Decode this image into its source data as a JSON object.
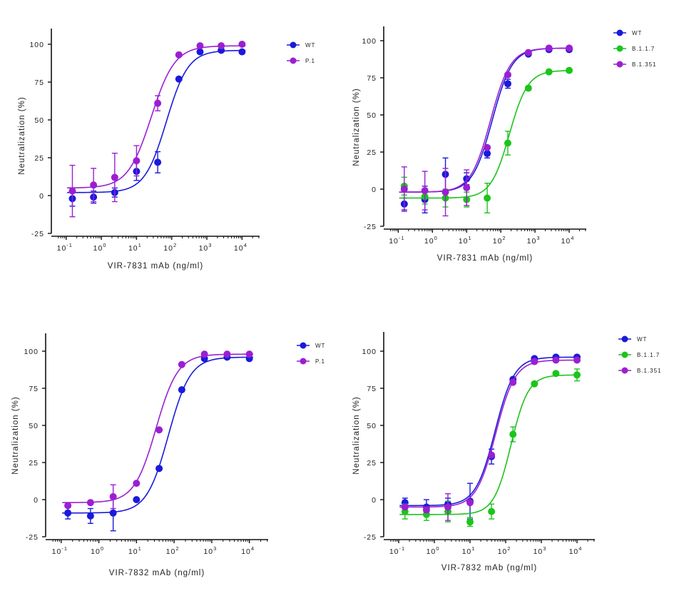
{
  "chart_data": [
    {
      "type": "line",
      "xscale": "log",
      "xlabel": "VIR-7831 mAb (ng/ml)",
      "ylabel": "Neutralization (%)",
      "xlim": [
        -1.3,
        4.5
      ],
      "ylim": [
        -25,
        110
      ],
      "yticks": [
        -25,
        0,
        25,
        50,
        75,
        100
      ],
      "xticks": [
        {
          "exp": -1,
          "base": "10",
          "sup": "-1"
        },
        {
          "exp": 0,
          "base": "10",
          "sup": "0"
        },
        {
          "exp": 1,
          "base": "10",
          "sup": "1"
        },
        {
          "exp": 2,
          "base": "10",
          "sup": "2"
        },
        {
          "exp": 3,
          "base": "10",
          "sup": "3"
        },
        {
          "exp": 4,
          "base": "10",
          "sup": "4"
        }
      ],
      "series": [
        {
          "name": "WT",
          "color": "#1a1adb",
          "x": [
            0.15,
            0.6,
            2.4,
            10,
            40,
            160,
            640,
            2560,
            10000
          ],
          "y": [
            -2,
            -1,
            2,
            16,
            22,
            77,
            95,
            96,
            95
          ],
          "err": [
            5,
            4,
            3,
            6,
            7,
            0,
            0,
            0,
            0
          ],
          "fit": {
            "bottom": 2,
            "top": 96,
            "log_ec50": 1.85,
            "hill": 1.4
          }
        },
        {
          "name": "P.1",
          "color": "#9b1fd1",
          "x": [
            0.15,
            0.6,
            2.4,
            10,
            40,
            160,
            640,
            2560,
            10000
          ],
          "y": [
            3,
            7,
            12,
            23,
            61,
            93,
            99,
            99,
            100
          ],
          "err": [
            17,
            11,
            16,
            10,
            5,
            0,
            0,
            0,
            0
          ],
          "fit": {
            "bottom": 5,
            "top": 99,
            "log_ec50": 1.42,
            "hill": 1.3
          }
        }
      ]
    },
    {
      "type": "line",
      "xscale": "log",
      "xlabel": "VIR-7831 mAb (ng/ml)",
      "ylabel": "Neutralization (%)",
      "xlim": [
        -1.3,
        4.5
      ],
      "ylim": [
        -25,
        110
      ],
      "yticks": [
        -25,
        0,
        25,
        50,
        75,
        100
      ],
      "xticks": [
        {
          "exp": -1,
          "base": "10",
          "sup": "-1"
        },
        {
          "exp": 0,
          "base": "10",
          "sup": "0"
        },
        {
          "exp": 1,
          "base": "10",
          "sup": "1"
        },
        {
          "exp": 2,
          "base": "10",
          "sup": "2"
        },
        {
          "exp": 3,
          "base": "10",
          "sup": "3"
        },
        {
          "exp": 4,
          "base": "10",
          "sup": "4"
        }
      ],
      "series": [
        {
          "name": "WT",
          "color": "#1a1adb",
          "x": [
            0.15,
            0.6,
            2.4,
            10,
            40,
            160,
            640,
            2560,
            10000
          ],
          "y": [
            -10,
            -7,
            10,
            7,
            24,
            71,
            91,
            94,
            94
          ],
          "err": [
            4,
            9,
            11,
            4,
            3,
            3,
            0,
            0,
            0
          ],
          "fit": {
            "bottom": -2,
            "top": 95,
            "log_ec50": 1.75,
            "hill": 1.5
          }
        },
        {
          "name": "B.1.1.7",
          "color": "#1cc41c",
          "x": [
            0.15,
            0.6,
            2.4,
            10,
            40,
            160,
            640,
            2560,
            10000
          ],
          "y": [
            2,
            -5,
            -6,
            -7,
            -6,
            31,
            68,
            79,
            80
          ],
          "err": [
            6,
            5,
            6,
            5,
            10,
            8,
            0,
            0,
            0
          ],
          "fit": {
            "bottom": -6,
            "top": 80,
            "log_ec50": 2.25,
            "hill": 1.6
          }
        },
        {
          "name": "B.1.351",
          "color": "#9b1fd1",
          "x": [
            0.15,
            0.6,
            2.4,
            10,
            40,
            160,
            640,
            2560,
            10000
          ],
          "y": [
            0,
            -1,
            -2,
            1,
            28,
            77,
            92,
            95,
            95
          ],
          "err": [
            15,
            13,
            16,
            12,
            0,
            0,
            0,
            0,
            0
          ],
          "fit": {
            "bottom": -2,
            "top": 95,
            "log_ec50": 1.7,
            "hill": 1.5
          }
        }
      ]
    },
    {
      "type": "line",
      "xscale": "log",
      "xlabel": "VIR-7832 mAb (ng/ml)",
      "ylabel": "Neutralization (%)",
      "xlim": [
        -1.3,
        4.5
      ],
      "ylim": [
        -25,
        110
      ],
      "yticks": [
        -25,
        0,
        25,
        50,
        75,
        100
      ],
      "xticks": [
        {
          "exp": -1,
          "base": "10",
          "sup": "-1"
        },
        {
          "exp": 0,
          "base": "10",
          "sup": "0"
        },
        {
          "exp": 1,
          "base": "10",
          "sup": "1"
        },
        {
          "exp": 2,
          "base": "10",
          "sup": "2"
        },
        {
          "exp": 3,
          "base": "10",
          "sup": "3"
        },
        {
          "exp": 4,
          "base": "10",
          "sup": "4"
        }
      ],
      "series": [
        {
          "name": "WT",
          "color": "#1a1adb",
          "x": [
            0.15,
            0.6,
            2.4,
            10,
            40,
            160,
            640,
            2560,
            10000
          ],
          "y": [
            -9,
            -11,
            -9,
            0,
            21,
            74,
            95,
            96,
            95
          ],
          "err": [
            4,
            5,
            12,
            0,
            0,
            0,
            0,
            0,
            0
          ],
          "fit": {
            "bottom": -9,
            "top": 96,
            "log_ec50": 1.85,
            "hill": 1.5
          }
        },
        {
          "name": "P.1",
          "color": "#9b1fd1",
          "x": [
            0.15,
            0.6,
            2.4,
            10,
            40,
            160,
            640,
            2560,
            10000
          ],
          "y": [
            -4,
            -2,
            2,
            11,
            47,
            91,
            98,
            98,
            98
          ],
          "err": [
            0,
            0,
            8,
            0,
            0,
            0,
            0,
            0,
            0
          ],
          "fit": {
            "bottom": -2,
            "top": 98,
            "log_ec50": 1.52,
            "hill": 1.5
          }
        }
      ]
    },
    {
      "type": "line",
      "xscale": "log",
      "xlabel": "VIR-7832 mAb (ng/ml)",
      "ylabel": "Neutralization (%)",
      "xlim": [
        -1.3,
        4.5
      ],
      "ylim": [
        -25,
        110
      ],
      "yticks": [
        -25,
        0,
        25,
        50,
        75,
        100
      ],
      "xticks": [
        {
          "exp": -1,
          "base": "10",
          "sup": "-1"
        },
        {
          "exp": 0,
          "base": "10",
          "sup": "0"
        },
        {
          "exp": 1,
          "base": "10",
          "sup": "1"
        },
        {
          "exp": 2,
          "base": "10",
          "sup": "2"
        },
        {
          "exp": 3,
          "base": "10",
          "sup": "3"
        },
        {
          "exp": 4,
          "base": "10",
          "sup": "4"
        }
      ],
      "series": [
        {
          "name": "WT",
          "color": "#1a1adb",
          "x": [
            0.15,
            0.6,
            2.4,
            10,
            40,
            160,
            640,
            2560,
            10000
          ],
          "y": [
            -2,
            -5,
            -3,
            -1,
            29,
            81,
            95,
            96,
            96
          ],
          "err": [
            3,
            5,
            4,
            12,
            5,
            0,
            0,
            0,
            0
          ],
          "fit": {
            "bottom": -4,
            "top": 96,
            "log_ec50": 1.7,
            "hill": 1.6
          }
        },
        {
          "name": "B.1.1.7",
          "color": "#1cc41c",
          "x": [
            0.15,
            0.6,
            2.4,
            10,
            40,
            160,
            640,
            2560,
            10000
          ],
          "y": [
            -8,
            -10,
            -8,
            -15,
            -8,
            44,
            78,
            85,
            84
          ],
          "err": [
            5,
            4,
            7,
            3,
            5,
            5,
            0,
            0,
            4
          ],
          "fit": {
            "bottom": -10,
            "top": 84,
            "log_ec50": 2.15,
            "hill": 1.8
          }
        },
        {
          "name": "B.1.351",
          "color": "#9b1fd1",
          "x": [
            0.15,
            0.6,
            2.4,
            10,
            40,
            160,
            640,
            2560,
            10000
          ],
          "y": [
            -5,
            -7,
            -5,
            -2,
            30,
            79,
            93,
            94,
            94
          ],
          "err": [
            0,
            0,
            9,
            0,
            0,
            0,
            0,
            0,
            0
          ],
          "fit": {
            "bottom": -5,
            "top": 94,
            "log_ec50": 1.72,
            "hill": 1.6
          }
        }
      ]
    }
  ]
}
